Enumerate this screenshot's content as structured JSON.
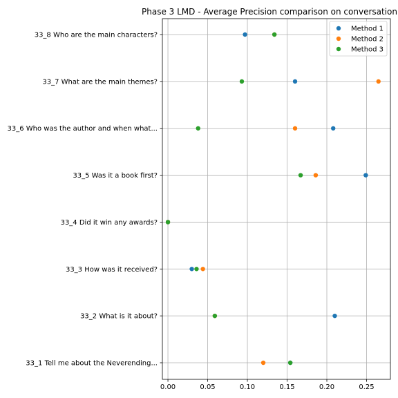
{
  "chart_data": {
    "type": "scatter",
    "title": "Phase 3 LMD - Average Precision comparison on conversation",
    "xlabel": "",
    "ylabel": "",
    "xlim": [
      -0.007,
      0.28
    ],
    "x_ticks": [
      "0.00",
      "0.05",
      "0.10",
      "0.15",
      "0.20",
      "0.25"
    ],
    "x_tick_values": [
      0.0,
      0.05,
      0.1,
      0.15,
      0.2,
      0.25
    ],
    "categories": [
      "33_1 Tell me about the Neverending...",
      "33_2 What is it about?",
      "33_3 How was it received?",
      "33_4 Did it win any awards?",
      "33_5 Was it a book first?",
      "33_6 Who was the author and when what...",
      "33_7 What are the main themes?",
      "33_8 Who are the main characters?"
    ],
    "grid": true,
    "legend_position": "top-right",
    "series": [
      {
        "name": "Method 1",
        "color": "#1f77b4",
        "values": [
          0.154,
          0.21,
          0.03,
          0.0,
          0.249,
          0.208,
          0.16,
          0.097
        ]
      },
      {
        "name": "Method 2",
        "color": "#ff7f0e",
        "values": [
          0.12,
          0.059,
          0.044,
          0.0,
          0.186,
          0.16,
          0.265,
          0.134
        ]
      },
      {
        "name": "Method 3",
        "color": "#2ca02c",
        "values": [
          0.154,
          0.059,
          0.036,
          0.0,
          0.167,
          0.038,
          0.093,
          0.134
        ]
      }
    ]
  }
}
